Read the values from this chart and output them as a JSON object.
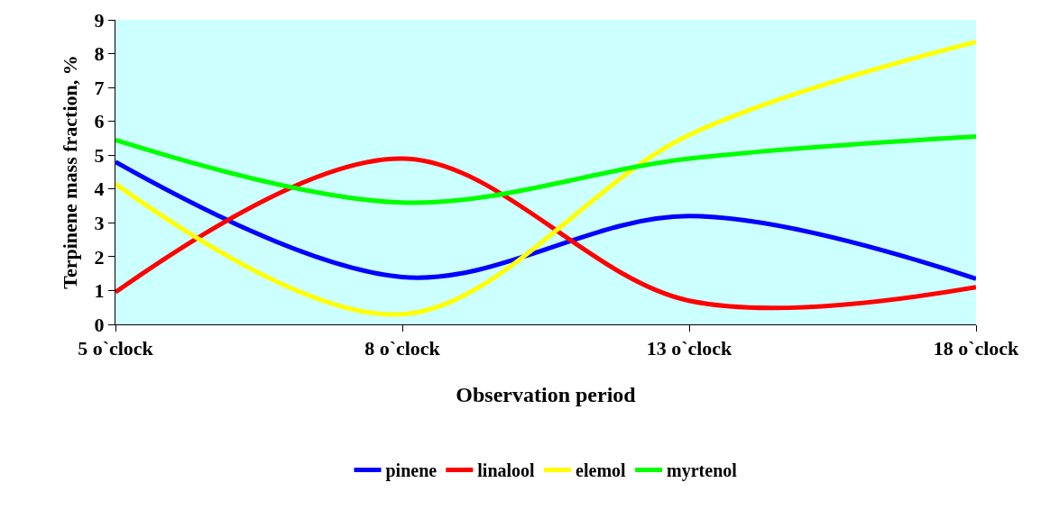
{
  "chart_data": {
    "type": "line",
    "xlabel": "Observation period",
    "ylabel": "Terpinene mass fraction, %",
    "categories": [
      "5 o`clock",
      "8 o`clock",
      "13 o`clock",
      "18 o`clock"
    ],
    "series": [
      {
        "name": "pinene",
        "color": "#0000ff",
        "values": [
          4.8,
          1.4,
          3.2,
          1.35
        ]
      },
      {
        "name": "linalool",
        "color": "#ff0000",
        "values": [
          0.95,
          4.9,
          0.7,
          1.1
        ]
      },
      {
        "name": "elemol",
        "color": "#ffff00",
        "values": [
          4.15,
          0.3,
          5.6,
          8.35
        ]
      },
      {
        "name": "myrtenol",
        "color": "#00ff00",
        "values": [
          5.45,
          3.6,
          4.9,
          5.55
        ]
      }
    ],
    "ylim": [
      0,
      9
    ],
    "yticks": [
      0,
      1,
      2,
      3,
      4,
      5,
      6,
      7,
      8,
      9
    ],
    "grid": false,
    "legend": "bottom",
    "marker": "none",
    "line_style": "solid"
  }
}
